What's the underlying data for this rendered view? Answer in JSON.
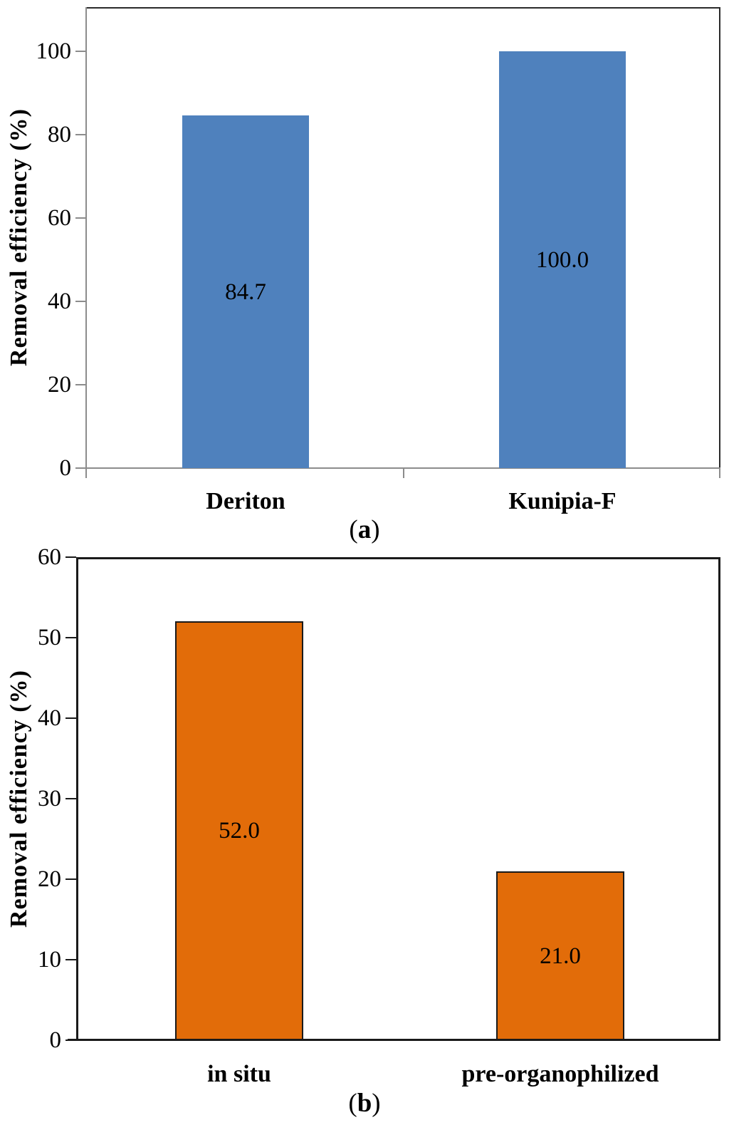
{
  "figure": {
    "description": "Two-panel bar figure of removal efficiency",
    "background_color": "#FFFFFF"
  },
  "chart_data": [
    {
      "panel": "a",
      "type": "bar",
      "title": "",
      "xlabel": "",
      "ylabel": "Removal efficiency (%)",
      "categories": [
        "Deriton",
        "Kunipia-F"
      ],
      "values": [
        84.7,
        100.0
      ],
      "value_labels": [
        "84.7",
        "100.0"
      ],
      "yticks": [
        0,
        20,
        40,
        60,
        80,
        100
      ],
      "ylim": [
        0,
        110.6
      ],
      "grid": false,
      "legend": "none",
      "bar_color": "#4F81BD",
      "bar_border_color": "",
      "axis_color": "#8C8C8C",
      "plot_border_color": "#2A2A2A",
      "caption": {
        "open": "(",
        "letter": "a",
        "close": ")"
      }
    },
    {
      "panel": "b",
      "type": "bar",
      "title": "",
      "xlabel": "",
      "ylabel": "Removal efficiency (%)",
      "categories": [
        "in situ",
        "pre-organophilized"
      ],
      "values": [
        52.0,
        21.0
      ],
      "value_labels": [
        "52.0",
        "21.0"
      ],
      "yticks": [
        0,
        10,
        20,
        30,
        40,
        50,
        60
      ],
      "ylim": [
        0,
        60
      ],
      "grid": false,
      "legend": "none",
      "bar_color": "#E26C09",
      "bar_border_color": "#1A1A1A",
      "axis_color": "#1A1A1A",
      "plot_border_color": "#1A1A1A",
      "caption": {
        "open": "(",
        "letter": "b",
        "close": ")"
      }
    }
  ]
}
